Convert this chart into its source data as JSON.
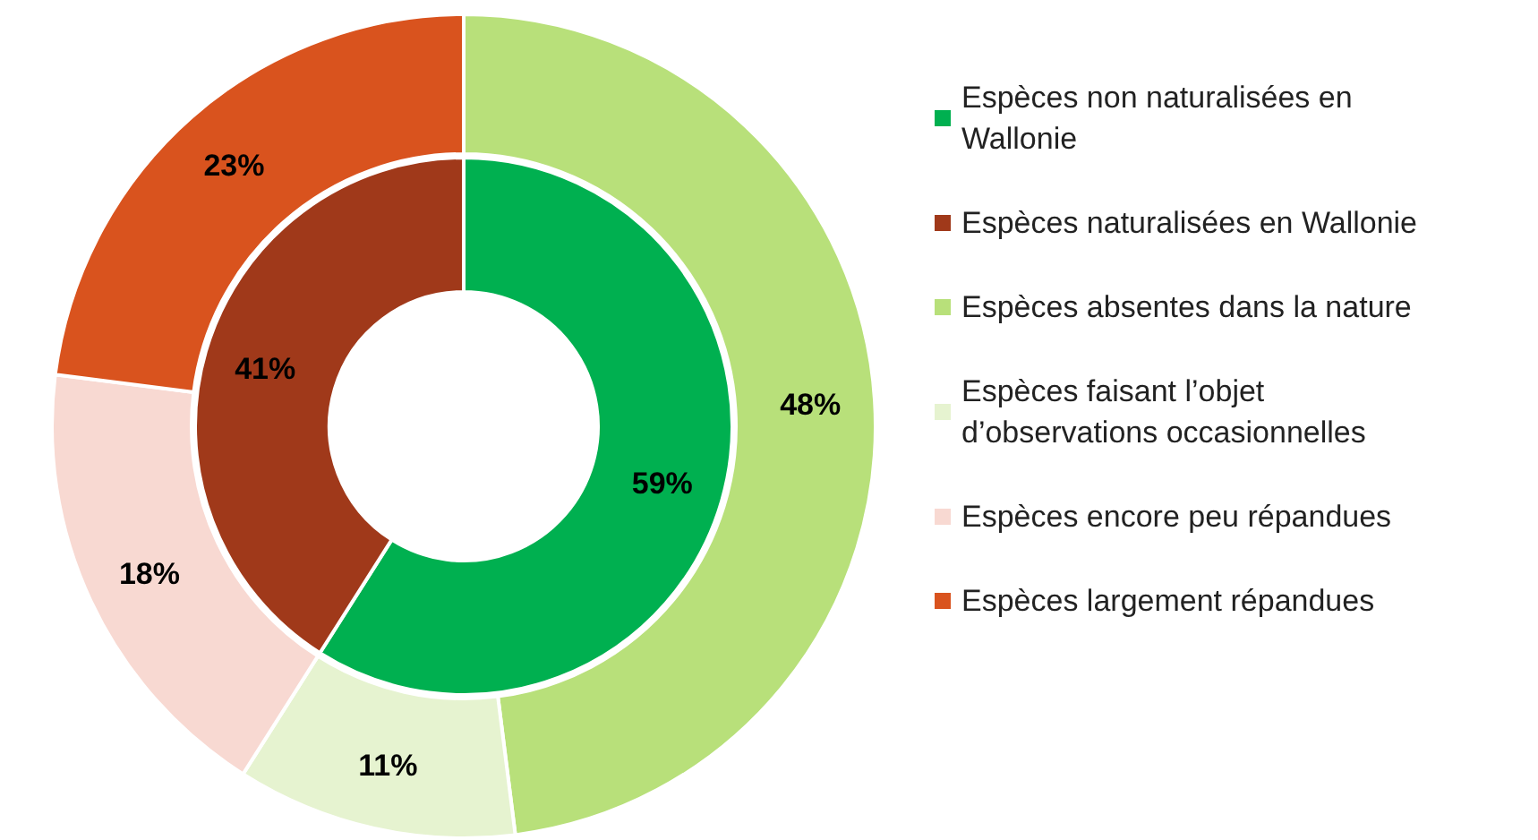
{
  "chart_data": {
    "type": "donut",
    "categories": [
      "Espèces non naturalisées en Wallonie",
      "Espèces naturalisées en Wallonie",
      "Espèces absentes dans la nature",
      "Espèces faisant l’objet d’observations occasionnelles",
      "Espèces encore peu répandues",
      "Espèces largement répandues"
    ],
    "colors": [
      "#00b050",
      "#a0391a",
      "#b8e07a",
      "#e6f3d0",
      "#f8d9d2",
      "#d9531e"
    ],
    "series": [
      {
        "values": [
          59,
          41,
          null,
          null,
          null,
          null
        ],
        "value_labels": [
          "59%",
          "41%",
          null,
          null,
          null,
          null
        ]
      },
      {
        "values": [
          null,
          null,
          48,
          11,
          18,
          23
        ],
        "value_labels": [
          null,
          null,
          "48%",
          "11%",
          "18%",
          "23%"
        ]
      }
    ],
    "data_labels": true,
    "legend": "right"
  }
}
